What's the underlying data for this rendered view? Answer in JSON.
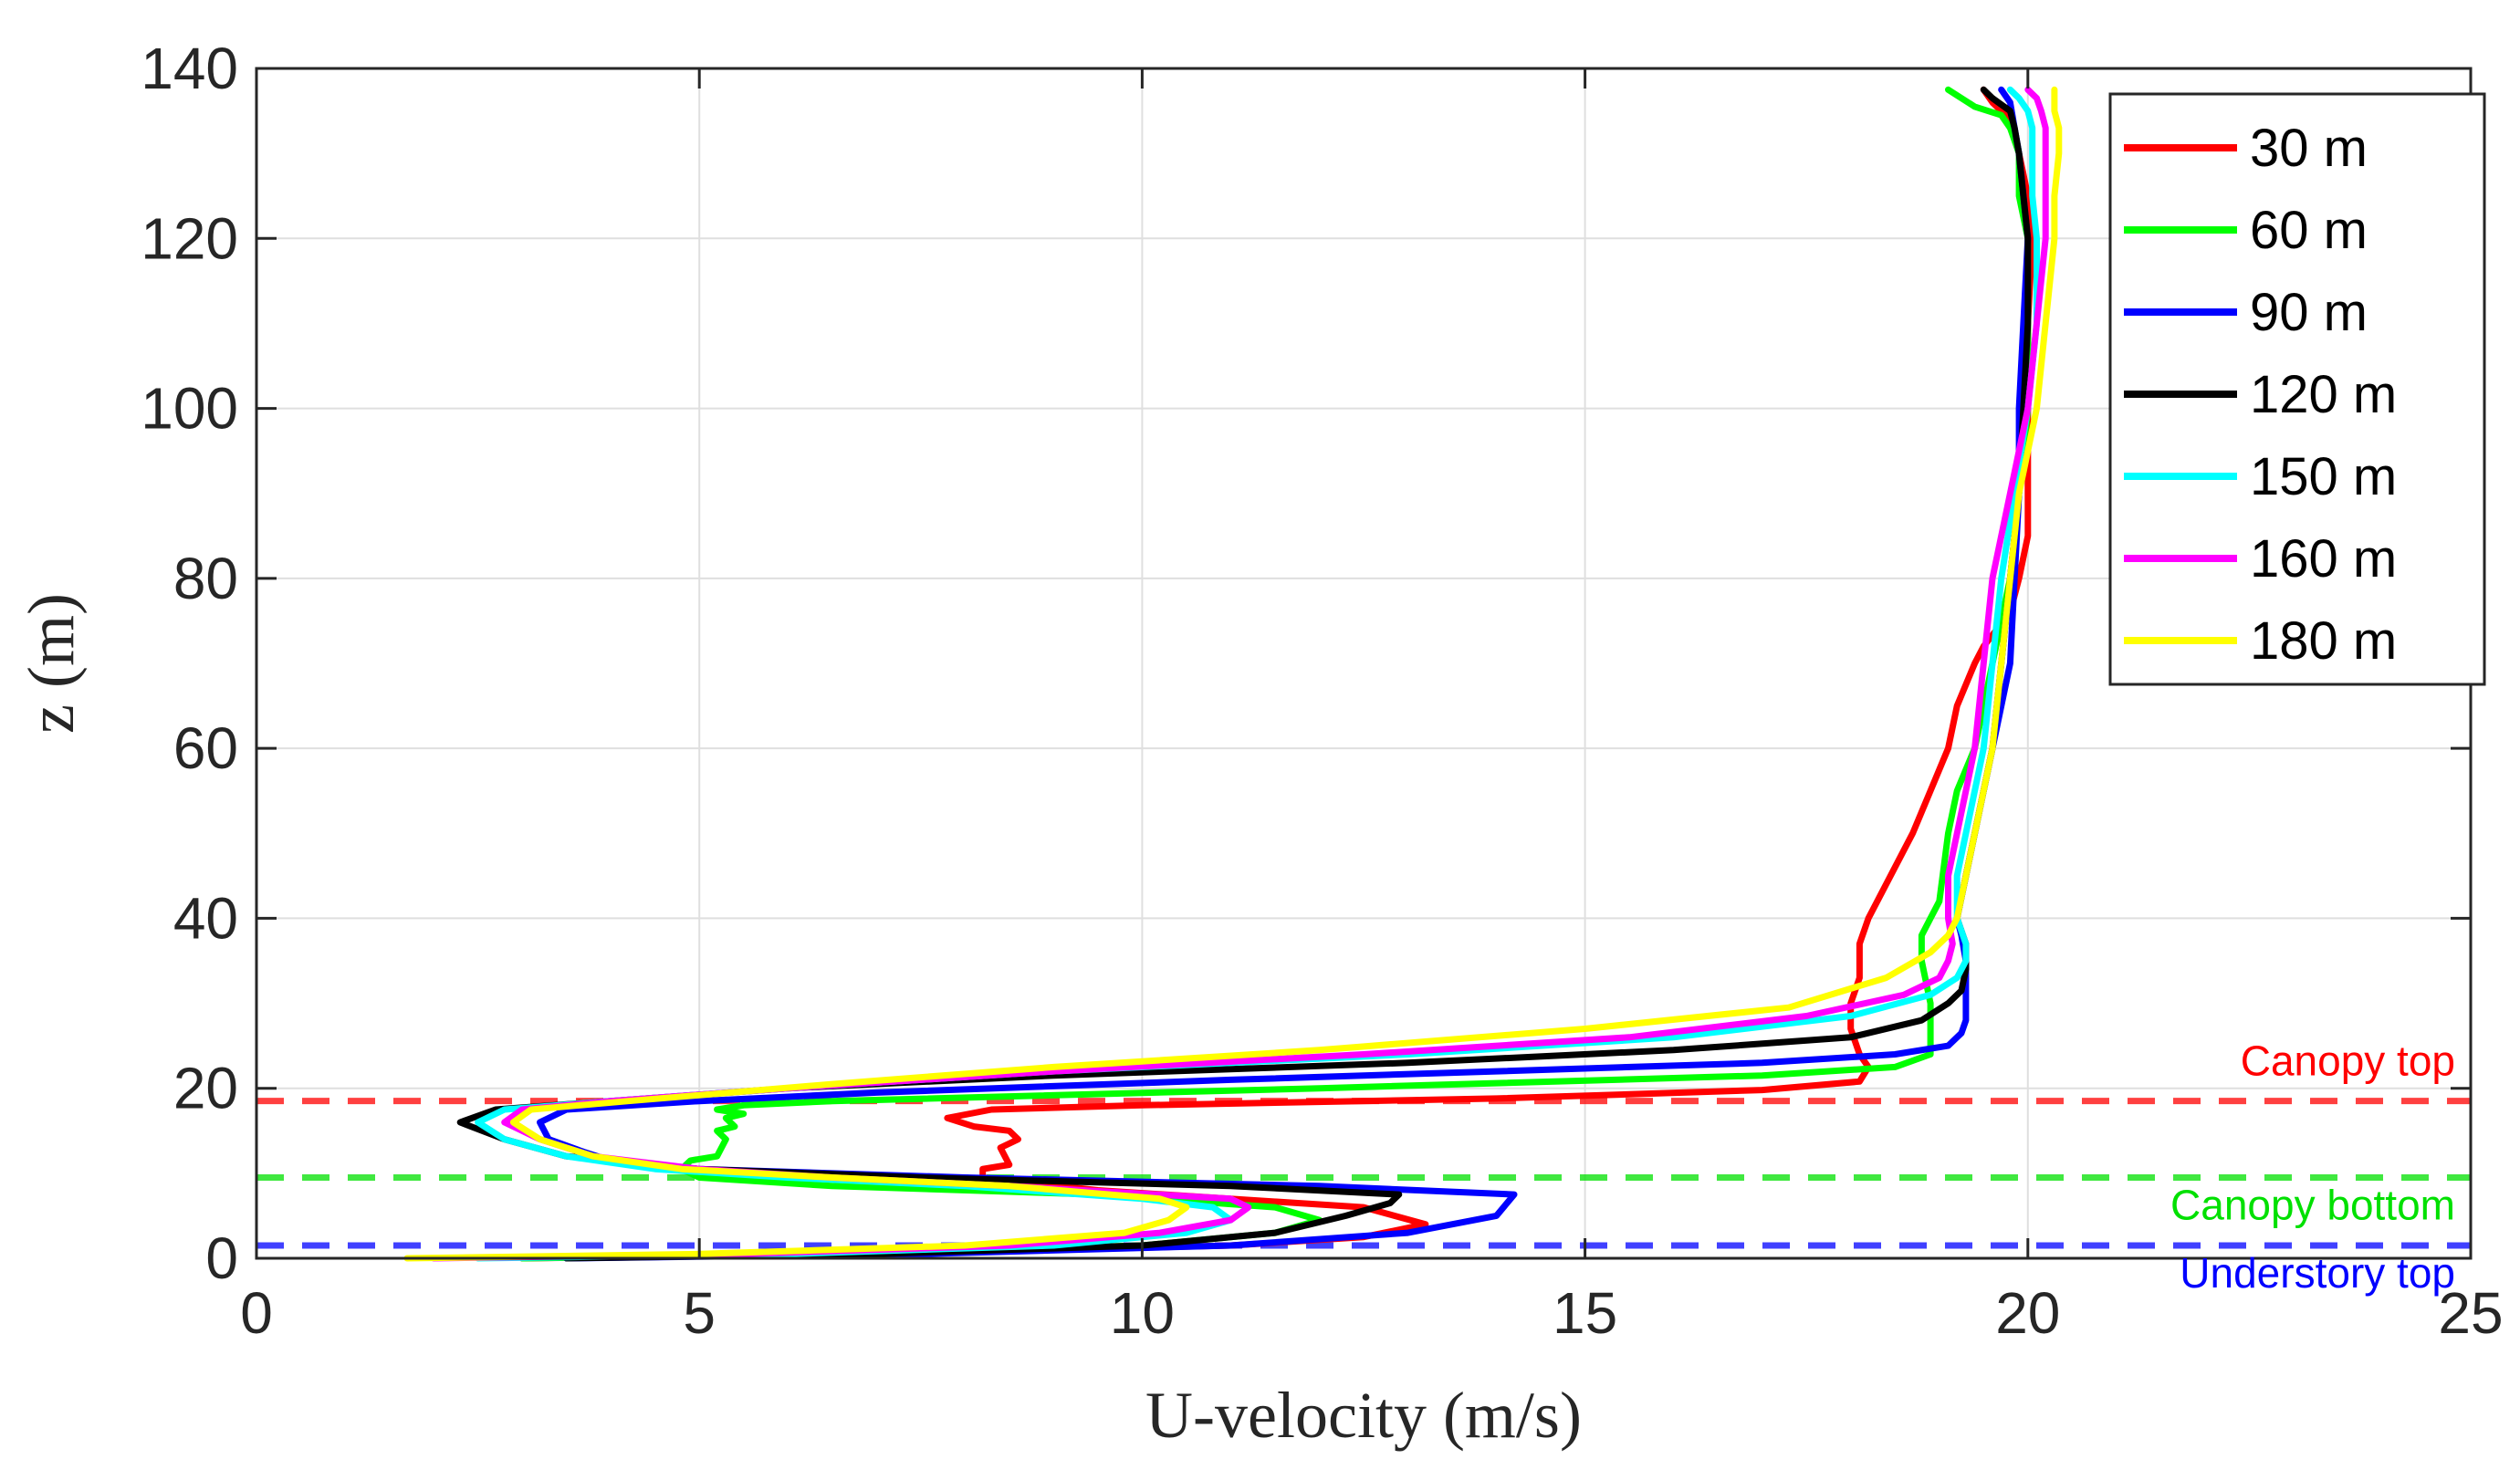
{
  "chart_data": {
    "type": "line",
    "title": "",
    "xlabel": "U-velocity (m/s)",
    "ylabel": "z (m)",
    "xlim": [
      0,
      25
    ],
    "ylim": [
      0,
      140
    ],
    "xticks": [
      "0",
      "5",
      "10",
      "15",
      "20",
      "25"
    ],
    "yticks": [
      "0",
      "20",
      "40",
      "60",
      "80",
      "100",
      "120",
      "140"
    ],
    "grid": true,
    "legend_position": "top-right",
    "series": [
      {
        "name": "30 m",
        "color": "#ff0000",
        "points": [
          [
            3,
            0
          ],
          [
            7,
            0.5
          ],
          [
            11,
            1.5
          ],
          [
            12.5,
            2.5
          ],
          [
            13.2,
            4
          ],
          [
            12.5,
            6
          ],
          [
            9.5,
            8
          ],
          [
            8.2,
            9.5
          ],
          [
            8.2,
            10.5
          ],
          [
            8.5,
            11
          ],
          [
            8.4,
            13
          ],
          [
            8.6,
            14
          ],
          [
            8.5,
            15
          ],
          [
            8.1,
            15.5
          ],
          [
            7.8,
            16.5
          ],
          [
            8.3,
            17.5
          ],
          [
            10,
            18
          ],
          [
            14,
            18.8
          ],
          [
            17,
            19.8
          ],
          [
            18.1,
            20.8
          ],
          [
            18.2,
            22.5
          ],
          [
            18.1,
            24
          ],
          [
            18,
            27
          ],
          [
            18,
            30
          ],
          [
            18.1,
            33
          ],
          [
            18.1,
            37
          ],
          [
            18.2,
            40
          ],
          [
            18.3,
            42
          ],
          [
            18.5,
            46
          ],
          [
            18.7,
            50
          ],
          [
            18.9,
            55
          ],
          [
            19.1,
            60
          ],
          [
            19.2,
            65
          ],
          [
            19.4,
            70
          ],
          [
            19.5,
            72
          ],
          [
            19.8,
            76
          ],
          [
            19.9,
            80
          ],
          [
            20,
            85
          ],
          [
            20,
            90
          ],
          [
            20,
            100
          ],
          [
            20,
            110
          ],
          [
            20.05,
            120
          ],
          [
            20,
            125
          ],
          [
            19.9,
            130
          ],
          [
            19.8,
            134
          ],
          [
            19.7,
            135
          ],
          [
            19.6,
            136
          ],
          [
            19.5,
            137.5
          ]
        ]
      },
      {
        "name": "60 m",
        "color": "#00ff00",
        "points": [
          [
            3,
            0
          ],
          [
            6.5,
            0.5
          ],
          [
            10,
            1.5
          ],
          [
            11.5,
            3
          ],
          [
            12,
            4.5
          ],
          [
            11.5,
            6
          ],
          [
            9.5,
            7.5
          ],
          [
            6.5,
            8.5
          ],
          [
            5,
            9.5
          ],
          [
            4.8,
            10.5
          ],
          [
            4.9,
            11.5
          ],
          [
            5.2,
            12
          ],
          [
            5.3,
            14
          ],
          [
            5.2,
            15
          ],
          [
            5.4,
            15.5
          ],
          [
            5.3,
            16.5
          ],
          [
            5.5,
            17
          ],
          [
            5.2,
            17.5
          ],
          [
            5.5,
            18
          ],
          [
            6.5,
            18.5
          ],
          [
            12,
            20
          ],
          [
            17,
            21.5
          ],
          [
            18.5,
            22.5
          ],
          [
            18.9,
            24
          ],
          [
            18.9,
            26
          ],
          [
            18.9,
            28
          ],
          [
            18.9,
            30
          ],
          [
            18.8,
            35
          ],
          [
            18.8,
            38
          ],
          [
            18.9,
            40
          ],
          [
            19,
            42
          ],
          [
            19.1,
            50
          ],
          [
            19.2,
            55
          ],
          [
            19.4,
            60
          ],
          [
            19.5,
            65
          ],
          [
            19.6,
            70
          ],
          [
            19.7,
            75
          ],
          [
            19.8,
            80
          ],
          [
            19.9,
            90
          ],
          [
            20,
            100
          ],
          [
            20,
            110
          ],
          [
            20,
            120
          ],
          [
            19.9,
            125
          ],
          [
            19.9,
            130
          ],
          [
            19.8,
            133
          ],
          [
            19.7,
            134.5
          ],
          [
            19.4,
            135.5
          ],
          [
            19.1,
            137.5
          ]
        ]
      },
      {
        "name": "90 m",
        "color": "#0000ff",
        "points": [
          [
            3.5,
            0
          ],
          [
            7.5,
            0.5
          ],
          [
            11,
            1.5
          ],
          [
            13,
            3
          ],
          [
            14,
            5
          ],
          [
            14.2,
            7.5
          ],
          [
            12,
            8.5
          ],
          [
            8,
            9.5
          ],
          [
            5,
            10.5
          ],
          [
            4,
            11.5
          ],
          [
            3.7,
            12.5
          ],
          [
            3.3,
            14
          ],
          [
            3.2,
            16
          ],
          [
            3.5,
            17.5
          ],
          [
            5,
            18.5
          ],
          [
            7,
            19.5
          ],
          [
            11,
            21
          ],
          [
            14,
            22
          ],
          [
            17,
            23
          ],
          [
            18.5,
            24
          ],
          [
            19.1,
            25
          ],
          [
            19.25,
            26.5
          ],
          [
            19.3,
            28
          ],
          [
            19.3,
            30
          ],
          [
            19.3,
            33
          ],
          [
            19.3,
            35
          ],
          [
            19.25,
            38
          ],
          [
            19.2,
            40
          ],
          [
            19.3,
            45
          ],
          [
            19.4,
            50
          ],
          [
            19.5,
            55
          ],
          [
            19.6,
            60
          ],
          [
            19.7,
            65
          ],
          [
            19.8,
            70
          ],
          [
            19.85,
            80
          ],
          [
            19.9,
            90
          ],
          [
            19.9,
            100
          ],
          [
            19.95,
            110
          ],
          [
            20,
            120
          ],
          [
            19.95,
            125
          ],
          [
            19.9,
            130
          ],
          [
            19.85,
            133
          ],
          [
            19.8,
            136
          ],
          [
            19.7,
            137.5
          ]
        ]
      },
      {
        "name": "120 m",
        "color": "#000000",
        "points": [
          [
            3.5,
            0
          ],
          [
            7,
            0.5
          ],
          [
            10,
            1.5
          ],
          [
            11.5,
            3
          ],
          [
            12.3,
            5
          ],
          [
            12.8,
            6.5
          ],
          [
            12.9,
            7.5
          ],
          [
            11,
            8.5
          ],
          [
            7.5,
            9.5
          ],
          [
            5,
            10.5
          ],
          [
            3.5,
            12
          ],
          [
            2.8,
            14
          ],
          [
            2.3,
            16
          ],
          [
            2.7,
            17.5
          ],
          [
            4,
            18.5
          ],
          [
            6,
            20
          ],
          [
            9,
            21.5
          ],
          [
            13,
            23
          ],
          [
            16,
            24.5
          ],
          [
            18,
            26
          ],
          [
            18.8,
            28
          ],
          [
            19.1,
            30
          ],
          [
            19.25,
            31.5
          ],
          [
            19.3,
            34
          ],
          [
            19.3,
            37
          ],
          [
            19.2,
            40
          ],
          [
            19.3,
            45
          ],
          [
            19.4,
            50
          ],
          [
            19.5,
            55
          ],
          [
            19.6,
            60
          ],
          [
            19.7,
            70
          ],
          [
            19.8,
            80
          ],
          [
            19.9,
            90
          ],
          [
            19.95,
            100
          ],
          [
            20,
            110
          ],
          [
            20,
            120
          ],
          [
            19.95,
            125
          ],
          [
            19.9,
            130
          ],
          [
            19.85,
            133
          ],
          [
            19.8,
            135
          ],
          [
            19.6,
            136.5
          ],
          [
            19.5,
            137.5
          ]
        ]
      },
      {
        "name": "150 m",
        "color": "#00ffff",
        "points": [
          [
            2.5,
            0
          ],
          [
            6,
            0.5
          ],
          [
            9,
            1.5
          ],
          [
            10.5,
            3
          ],
          [
            11,
            4.5
          ],
          [
            10.8,
            6
          ],
          [
            10,
            7
          ],
          [
            8,
            8.5
          ],
          [
            6,
            9.5
          ],
          [
            4.5,
            10.5
          ],
          [
            3.5,
            12
          ],
          [
            2.8,
            14
          ],
          [
            2.5,
            16
          ],
          [
            2.8,
            17.5
          ],
          [
            4,
            18.5
          ],
          [
            6,
            20
          ],
          [
            9,
            22
          ],
          [
            13,
            24
          ],
          [
            16,
            26
          ],
          [
            18,
            28.5
          ],
          [
            18.9,
            31
          ],
          [
            19.2,
            33
          ],
          [
            19.3,
            35
          ],
          [
            19.3,
            37
          ],
          [
            19.2,
            40
          ],
          [
            19.2,
            45
          ],
          [
            19.3,
            50
          ],
          [
            19.4,
            55
          ],
          [
            19.5,
            60
          ],
          [
            19.6,
            70
          ],
          [
            19.7,
            80
          ],
          [
            19.85,
            90
          ],
          [
            20,
            100
          ],
          [
            20.1,
            110
          ],
          [
            20.1,
            120
          ],
          [
            20.05,
            125
          ],
          [
            20.05,
            130
          ],
          [
            20.05,
            133
          ],
          [
            20.0,
            135
          ],
          [
            19.9,
            136.5
          ],
          [
            19.8,
            137.5
          ]
        ]
      },
      {
        "name": "160 m",
        "color": "#ff00ff",
        "points": [
          [
            2,
            0
          ],
          [
            5.5,
            0.5
          ],
          [
            8.5,
            1.5
          ],
          [
            10.2,
            3
          ],
          [
            11,
            4.5
          ],
          [
            11.2,
            6
          ],
          [
            11,
            7
          ],
          [
            8.5,
            8.5
          ],
          [
            6.5,
            9.5
          ],
          [
            5,
            10.5
          ],
          [
            3.8,
            12
          ],
          [
            3.2,
            14
          ],
          [
            2.8,
            16
          ],
          [
            3,
            17.5
          ],
          [
            4,
            18.5
          ],
          [
            6,
            20
          ],
          [
            9,
            22
          ],
          [
            12.5,
            24
          ],
          [
            15.5,
            26
          ],
          [
            17.5,
            28.5
          ],
          [
            18.6,
            31
          ],
          [
            19,
            33
          ],
          [
            19.1,
            35
          ],
          [
            19.15,
            37
          ],
          [
            19.1,
            40
          ],
          [
            19.1,
            45
          ],
          [
            19.2,
            50
          ],
          [
            19.3,
            55
          ],
          [
            19.4,
            60
          ],
          [
            19.5,
            70
          ],
          [
            19.6,
            80
          ],
          [
            19.8,
            90
          ],
          [
            20,
            100
          ],
          [
            20.1,
            110
          ],
          [
            20.2,
            120
          ],
          [
            20.2,
            125
          ],
          [
            20.2,
            130
          ],
          [
            20.2,
            133
          ],
          [
            20.15,
            135
          ],
          [
            20.1,
            136.5
          ],
          [
            20,
            137.5
          ]
        ]
      },
      {
        "name": "180 m",
        "color": "#ffff00",
        "points": [
          [
            1.7,
            0
          ],
          [
            5,
            0.5
          ],
          [
            8,
            1.5
          ],
          [
            9.8,
            3
          ],
          [
            10.3,
            4.5
          ],
          [
            10.5,
            6
          ],
          [
            10.2,
            7
          ],
          [
            8.5,
            8.5
          ],
          [
            6.5,
            9.5
          ],
          [
            4.8,
            10.5
          ],
          [
            3.8,
            12
          ],
          [
            3.2,
            14
          ],
          [
            2.9,
            16
          ],
          [
            3.1,
            17.5
          ],
          [
            4.2,
            18.5
          ],
          [
            6.5,
            20.5
          ],
          [
            9,
            22.5
          ],
          [
            12,
            24.5
          ],
          [
            15,
            27
          ],
          [
            17.3,
            29.5
          ],
          [
            18.4,
            33
          ],
          [
            18.9,
            36
          ],
          [
            19.1,
            38
          ],
          [
            19.2,
            40
          ],
          [
            19.3,
            45
          ],
          [
            19.4,
            50
          ],
          [
            19.5,
            55
          ],
          [
            19.6,
            60
          ],
          [
            19.7,
            70
          ],
          [
            19.8,
            80
          ],
          [
            19.9,
            90
          ],
          [
            20.1,
            100
          ],
          [
            20.2,
            110
          ],
          [
            20.3,
            120
          ],
          [
            20.3,
            125
          ],
          [
            20.35,
            130
          ],
          [
            20.35,
            133
          ],
          [
            20.3,
            135
          ],
          [
            20.3,
            137.5
          ]
        ]
      }
    ],
    "reference_lines": [
      {
        "label": "Canopy top",
        "y": 18.5,
        "color": "#ff0000"
      },
      {
        "label": "Canopy bottom",
        "y": 9.5,
        "color": "#00e000"
      },
      {
        "label": "Understory top",
        "y": 1.5,
        "color": "#0000ff"
      }
    ]
  }
}
